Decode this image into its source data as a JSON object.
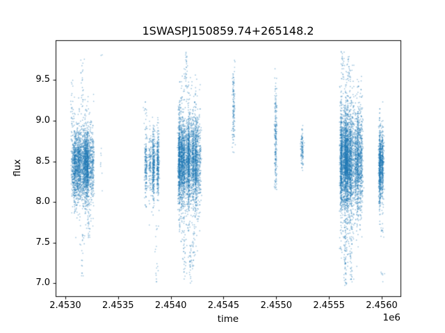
{
  "chart_data": {
    "type": "scatter",
    "title": "1SWASPJ150859.74+265148.2",
    "xlabel": "time",
    "ylabel": "flux",
    "x_offset_label": "1e6",
    "xlim": [
      2.452908,
      2.456178
    ],
    "ylim": [
      6.84,
      9.99
    ],
    "x_ticks": [
      {
        "value": 2.453,
        "label": "2.4530"
      },
      {
        "value": 2.4535,
        "label": "2.4535"
      },
      {
        "value": 2.454,
        "label": "2.4540"
      },
      {
        "value": 2.4545,
        "label": "2.4545"
      },
      {
        "value": 2.455,
        "label": "2.4550"
      },
      {
        "value": 2.4555,
        "label": "2.4555"
      },
      {
        "value": 2.456,
        "label": "2.4560"
      }
    ],
    "y_ticks": [
      {
        "value": 7.0,
        "label": "7.0"
      },
      {
        "value": 7.5,
        "label": "7.5"
      },
      {
        "value": 8.0,
        "label": "8.0"
      },
      {
        "value": 8.5,
        "label": "8.5"
      },
      {
        "value": 9.0,
        "label": "9.0"
      },
      {
        "value": 9.5,
        "label": "9.5"
      }
    ],
    "point_color": "#1f77b4",
    "point_alpha": 0.45,
    "point_radius": 0.85,
    "frame_color": "#000000",
    "clusters": [
      {
        "x_min": 2.45306,
        "x_max": 2.45327,
        "stripes": 12,
        "count": 2800,
        "flux_mean": 8.45,
        "flux_sigma": 0.22,
        "flux_min": 7.55,
        "flux_max": 9.55,
        "tail_frac": 0.05,
        "tail_sigma": 0.45,
        "spikes": [
          {
            "x": 2.453065,
            "f0": 8.9,
            "f1": 9.55,
            "n": 25
          },
          {
            "x": 2.45316,
            "f0": 9.0,
            "f1": 9.8,
            "n": 22
          },
          {
            "x": 2.45316,
            "f0": 7.05,
            "f1": 7.65,
            "n": 18
          },
          {
            "x": 2.45322,
            "f0": 7.55,
            "f1": 8.0,
            "n": 30
          }
        ]
      },
      {
        "x_min": 2.45332,
        "x_max": 2.45336,
        "stripes": 1,
        "count": 8,
        "flux_mean": 8.35,
        "flux_sigma": 0.15,
        "flux_min": 8.0,
        "flux_max": 8.7,
        "tail_frac": 0,
        "tail_sigma": 0.3,
        "spikes": [
          {
            "x": 2.45334,
            "f0": 9.75,
            "f1": 9.82,
            "n": 2
          }
        ]
      },
      {
        "x_min": 2.45374,
        "x_max": 2.4539,
        "stripes": 4,
        "count": 950,
        "flux_mean": 8.45,
        "flux_sigma": 0.2,
        "flux_min": 7.6,
        "flux_max": 9.2,
        "tail_frac": 0.06,
        "tail_sigma": 0.4,
        "spikes": [
          {
            "x": 2.45386,
            "f0": 7.0,
            "f1": 7.8,
            "n": 16
          },
          {
            "x": 2.45376,
            "f0": 8.95,
            "f1": 9.25,
            "n": 10
          }
        ]
      },
      {
        "x_min": 2.45407,
        "x_max": 2.45429,
        "stripes": 10,
        "count": 3600,
        "flux_mean": 8.5,
        "flux_sigma": 0.27,
        "flux_min": 7.3,
        "flux_max": 9.6,
        "tail_frac": 0.12,
        "tail_sigma": 0.6,
        "spikes": [
          {
            "x": 2.454145,
            "f0": 9.4,
            "f1": 9.85,
            "n": 30
          },
          {
            "x": 2.45419,
            "f0": 7.0,
            "f1": 7.5,
            "n": 35
          },
          {
            "x": 2.45413,
            "f0": 7.05,
            "f1": 7.6,
            "n": 25
          },
          {
            "x": 2.45422,
            "f0": 7.2,
            "f1": 7.7,
            "n": 20
          }
        ]
      },
      {
        "x_min": 2.45458,
        "x_max": 2.45462,
        "stripes": 1,
        "count": 130,
        "flux_mean": 9.15,
        "flux_sigma": 0.3,
        "flux_min": 8.6,
        "flux_max": 9.8,
        "tail_frac": 0,
        "tail_sigma": 0.3,
        "spikes": []
      },
      {
        "x_min": 2.45498,
        "x_max": 2.455005,
        "stripes": 1,
        "count": 220,
        "flux_mean": 8.75,
        "flux_sigma": 0.33,
        "flux_min": 8.15,
        "flux_max": 9.8,
        "tail_frac": 0,
        "tail_sigma": 0.3,
        "spikes": []
      },
      {
        "x_min": 2.455235,
        "x_max": 2.455255,
        "stripes": 1,
        "count": 110,
        "flux_mean": 8.65,
        "flux_sigma": 0.13,
        "flux_min": 8.38,
        "flux_max": 8.95,
        "tail_frac": 0,
        "tail_sigma": 0.2,
        "spikes": []
      },
      {
        "x_min": 2.45561,
        "x_max": 2.45582,
        "stripes": 11,
        "count": 4200,
        "flux_mean": 8.5,
        "flux_sigma": 0.3,
        "flux_min": 7.2,
        "flux_max": 9.7,
        "tail_frac": 0.14,
        "tail_sigma": 0.65,
        "spikes": [
          {
            "x": 2.455655,
            "f0": 6.95,
            "f1": 7.8,
            "n": 60
          },
          {
            "x": 2.45571,
            "f0": 7.0,
            "f1": 7.9,
            "n": 50
          },
          {
            "x": 2.45563,
            "f0": 9.5,
            "f1": 9.85,
            "n": 25
          },
          {
            "x": 2.45569,
            "f0": 9.5,
            "f1": 9.8,
            "n": 20
          }
        ]
      },
      {
        "x_min": 2.45597,
        "x_max": 2.456025,
        "stripes": 2,
        "count": 900,
        "flux_mean": 8.45,
        "flux_sigma": 0.22,
        "flux_min": 7.55,
        "flux_max": 9.3,
        "tail_frac": 0.05,
        "tail_sigma": 0.4,
        "spikes": [
          {
            "x": 2.456005,
            "f0": 7.0,
            "f1": 7.15,
            "n": 6
          },
          {
            "x": 2.456005,
            "f0": 7.55,
            "f1": 7.7,
            "n": 8
          }
        ]
      }
    ]
  }
}
